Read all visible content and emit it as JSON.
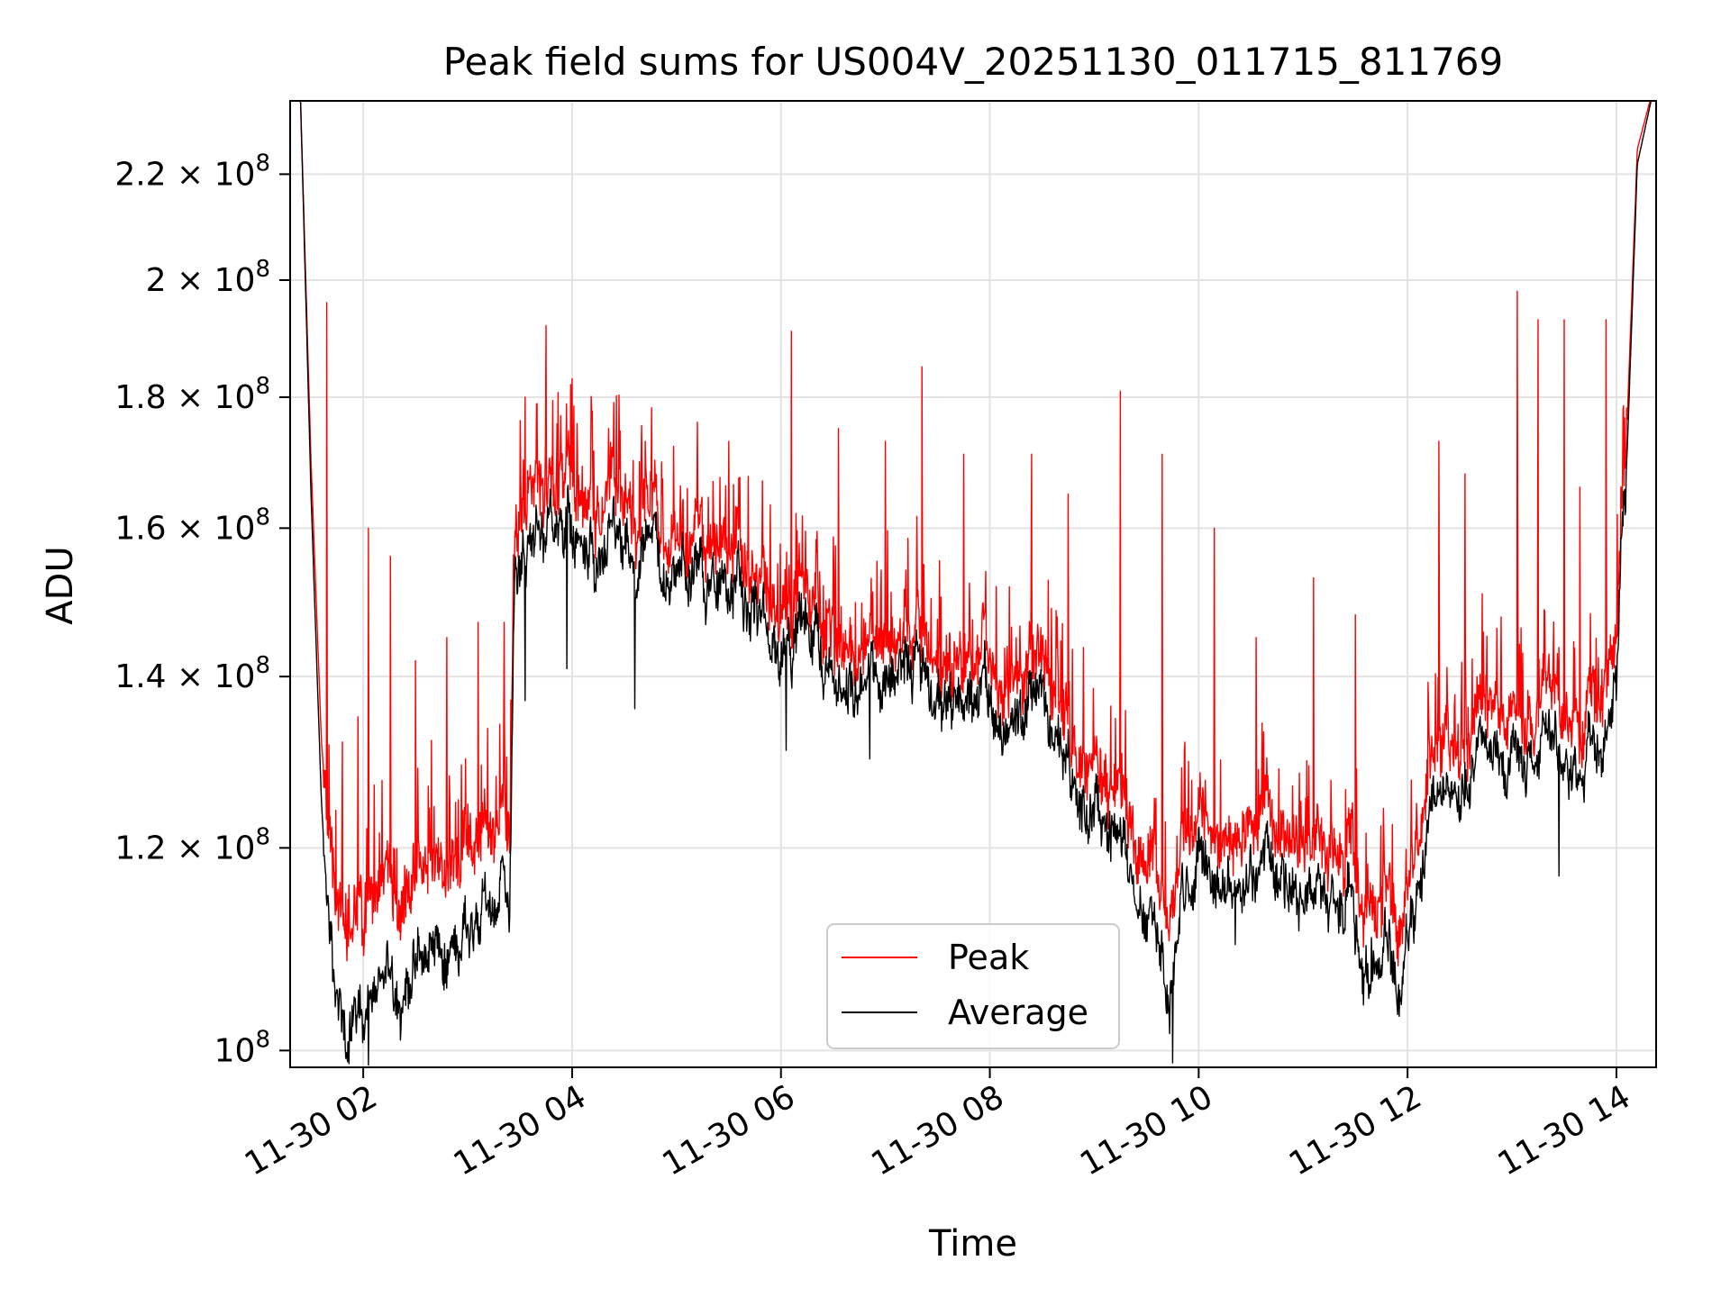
{
  "chart_data": {
    "type": "line",
    "title": "Peak field sums for US004V_20251130_011715_811769",
    "xlabel": "Time",
    "ylabel": "ADU",
    "yscale": "log",
    "grid": true,
    "legend_position": "lower-center",
    "xlim": [
      1.3,
      14.38
    ],
    "ylim": [
      98500000,
      235000000
    ],
    "x_ticks": [
      {
        "value": 2,
        "label": "11-30 02"
      },
      {
        "value": 4,
        "label": "11-30 04"
      },
      {
        "value": 6,
        "label": "11-30 06"
      },
      {
        "value": 8,
        "label": "11-30 08"
      },
      {
        "value": 10,
        "label": "11-30 10"
      },
      {
        "value": 12,
        "label": "11-30 12"
      },
      {
        "value": 14,
        "label": "11-30 14"
      }
    ],
    "y_ticks": [
      {
        "value": 100000000,
        "mant": "",
        "exp": "8",
        "base": "10"
      },
      {
        "value": 120000000,
        "mant": "1.2",
        "exp": "8",
        "base": "10"
      },
      {
        "value": 140000000,
        "mant": "1.4",
        "exp": "8",
        "base": "10"
      },
      {
        "value": 160000000,
        "mant": "1.6",
        "exp": "8",
        "base": "10"
      },
      {
        "value": 180000000,
        "mant": "1.8",
        "exp": "8",
        "base": "10"
      },
      {
        "value": 200000000,
        "mant": "2",
        "exp": "8",
        "base": "10"
      },
      {
        "value": 220000000,
        "mant": "2.2",
        "exp": "8",
        "base": "10"
      }
    ],
    "series": [
      {
        "name": "Peak",
        "color": "#ff0000",
        "x": [
          1.3,
          1.4,
          1.5,
          1.6,
          1.7,
          1.75,
          1.8,
          1.85,
          1.9,
          2.0,
          2.1,
          2.2,
          2.4,
          2.6,
          2.8,
          3.0,
          3.2,
          3.3,
          3.4,
          3.45,
          3.5,
          3.6,
          3.8,
          4.0,
          4.2,
          4.4,
          4.6,
          4.8,
          5.0,
          5.2,
          5.4,
          5.6,
          5.8,
          6.0,
          6.2,
          6.4,
          6.6,
          6.8,
          7.0,
          7.2,
          7.4,
          7.6,
          7.8,
          8.0,
          8.2,
          8.4,
          8.6,
          8.8,
          9.0,
          9.2,
          9.4,
          9.6,
          9.7,
          9.8,
          10.0,
          10.2,
          10.4,
          10.6,
          10.8,
          11.0,
          11.2,
          11.4,
          11.6,
          11.8,
          11.9,
          12.0,
          12.2,
          12.4,
          12.6,
          12.8,
          13.0,
          13.2,
          13.4,
          13.6,
          13.8,
          13.9,
          14.0,
          14.1,
          14.2,
          14.38
        ],
        "y": [
          240000000,
          235000000,
          170000000,
          132000000,
          116000000,
          112000000,
          109000000,
          110000000,
          111000000,
          113000000,
          114000000,
          115000000,
          117000000,
          118000000,
          119000000,
          120000000,
          121000000,
          122000000,
          124000000,
          158000000,
          162000000,
          165000000,
          166000000,
          164000000,
          163000000,
          162000000,
          160000000,
          161000000,
          158000000,
          159000000,
          155000000,
          153000000,
          151000000,
          149000000,
          151000000,
          147000000,
          144000000,
          146000000,
          143000000,
          148000000,
          144000000,
          142000000,
          143000000,
          142000000,
          143000000,
          141000000,
          140000000,
          133000000,
          128000000,
          126000000,
          122000000,
          116000000,
          113000000,
          119000000,
          125000000,
          122000000,
          121000000,
          123000000,
          121000000,
          120000000,
          119000000,
          120000000,
          114000000,
          119000000,
          111000000,
          117000000,
          129000000,
          131000000,
          134000000,
          136000000,
          138000000,
          135000000,
          137000000,
          136000000,
          138000000,
          140000000,
          148000000,
          175000000,
          225000000,
          240000000
        ],
        "spikes": [
          [
            1.65,
            196000000
          ],
          [
            1.8,
            132000000
          ],
          [
            1.95,
            135000000
          ],
          [
            2.05,
            160000000
          ],
          [
            2.26,
            156000000
          ],
          [
            2.5,
            142000000
          ],
          [
            2.8,
            145000000
          ],
          [
            3.1,
            147000000
          ],
          [
            3.35,
            147000000
          ],
          [
            3.55,
            180000000
          ],
          [
            3.75,
            192000000
          ],
          [
            4.0,
            183000000
          ],
          [
            4.35,
            175000000
          ],
          [
            4.7,
            173000000
          ],
          [
            5.2,
            176000000
          ],
          [
            5.5,
            173000000
          ],
          [
            6.1,
            191000000
          ],
          [
            6.55,
            175000000
          ],
          [
            7.0,
            173000000
          ],
          [
            7.35,
            185000000
          ],
          [
            7.75,
            171000000
          ],
          [
            8.4,
            171000000
          ],
          [
            8.75,
            165000000
          ],
          [
            9.25,
            181000000
          ],
          [
            9.65,
            171000000
          ],
          [
            10.15,
            160000000
          ],
          [
            10.55,
            145000000
          ],
          [
            11.1,
            153000000
          ],
          [
            11.5,
            148000000
          ],
          [
            12.3,
            173000000
          ],
          [
            12.55,
            168000000
          ],
          [
            13.05,
            198000000
          ],
          [
            13.25,
            193000000
          ],
          [
            13.5,
            193000000
          ],
          [
            13.65,
            166000000
          ],
          [
            13.9,
            193000000
          ]
        ]
      },
      {
        "name": "Average",
        "color": "#000000",
        "x": [
          1.3,
          1.4,
          1.5,
          1.6,
          1.7,
          1.75,
          1.8,
          1.85,
          1.9,
          2.0,
          2.1,
          2.2,
          2.4,
          2.6,
          2.8,
          3.0,
          3.2,
          3.3,
          3.4,
          3.45,
          3.5,
          3.6,
          3.8,
          4.0,
          4.2,
          4.4,
          4.6,
          4.8,
          5.0,
          5.2,
          5.4,
          5.6,
          5.8,
          6.0,
          6.2,
          6.4,
          6.6,
          6.8,
          7.0,
          7.2,
          7.4,
          7.6,
          7.8,
          8.0,
          8.2,
          8.4,
          8.6,
          8.8,
          9.0,
          9.2,
          9.4,
          9.6,
          9.7,
          9.8,
          10.0,
          10.2,
          10.4,
          10.6,
          10.8,
          11.0,
          11.2,
          11.4,
          11.6,
          11.8,
          11.9,
          12.0,
          12.2,
          12.4,
          12.6,
          12.8,
          13.0,
          13.2,
          13.4,
          13.6,
          13.8,
          13.9,
          14.0,
          14.1,
          14.2,
          14.38
        ],
        "y": [
          240000000,
          235000000,
          165000000,
          125000000,
          106000000,
          102000000,
          100000000,
          101000000,
          102000000,
          103000000,
          104500000,
          106000000,
          107500000,
          109000000,
          110000000,
          111000000,
          113000000,
          114000000,
          116000000,
          153000000,
          156000000,
          158000000,
          160000000,
          157000000,
          156000000,
          155000000,
          153000000,
          156000000,
          153000000,
          154000000,
          150000000,
          148000000,
          146000000,
          144000000,
          146000000,
          142000000,
          139000000,
          141000000,
          138000000,
          143000000,
          139000000,
          137000000,
          138000000,
          137000000,
          138000000,
          136000000,
          135000000,
          128000000,
          123000000,
          121000000,
          117000000,
          110000000,
          105000000,
          113000000,
          119000000,
          117000000,
          116000000,
          118000000,
          116000000,
          115000000,
          114000000,
          115000000,
          108000000,
          113000000,
          105000000,
          111000000,
          123000000,
          126000000,
          129000000,
          131000000,
          132000000,
          130000000,
          131000000,
          130000000,
          132000000,
          134000000,
          142000000,
          170000000,
          222000000,
          240000000
        ],
        "dips": [
          [
            1.85,
            99000000
          ],
          [
            2.05,
            98700000
          ],
          [
            3.55,
            137000000
          ],
          [
            3.95,
            141000000
          ],
          [
            4.6,
            136000000
          ],
          [
            6.05,
            131000000
          ],
          [
            6.85,
            130000000
          ],
          [
            9.75,
            98900000
          ],
          [
            10.35,
            110000000
          ],
          [
            11.65,
            106000000
          ],
          [
            11.9,
            104000000
          ],
          [
            13.45,
            117000000
          ]
        ]
      }
    ]
  }
}
